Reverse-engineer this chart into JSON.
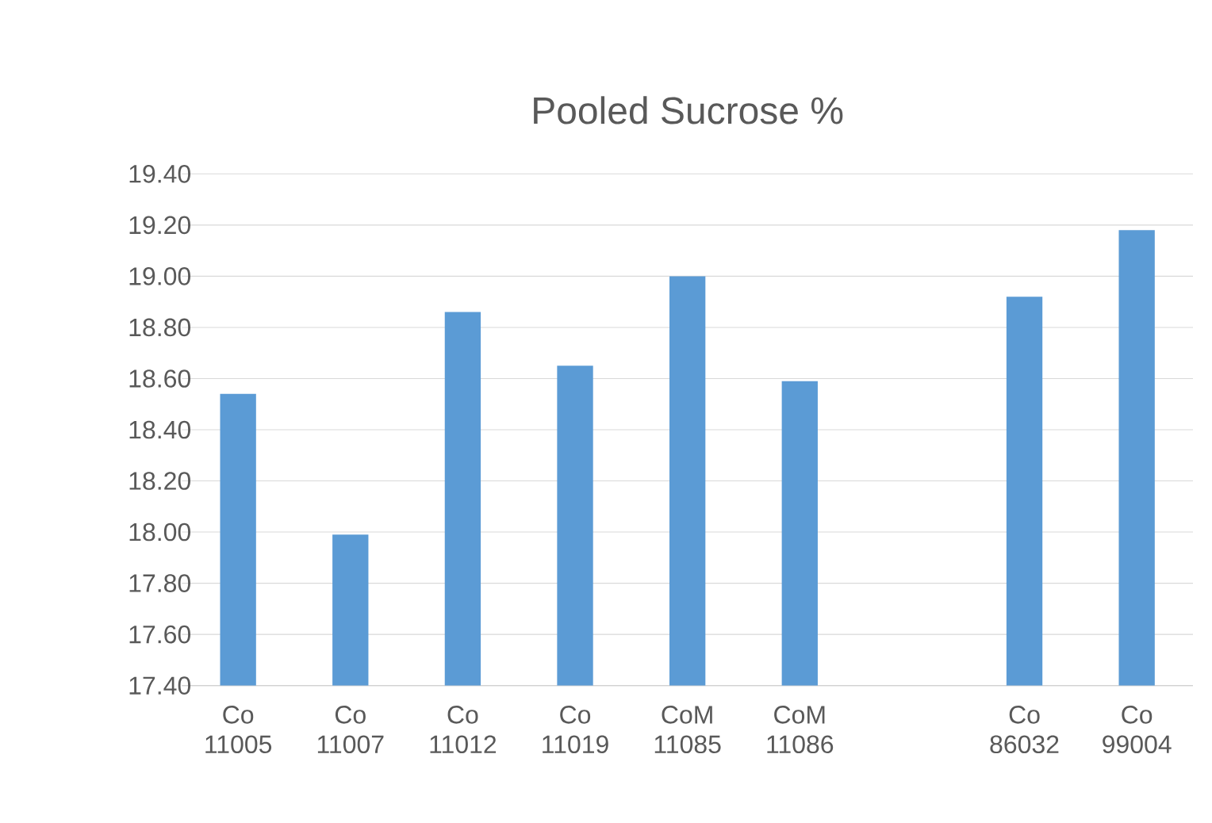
{
  "chart_data": {
    "type": "bar",
    "title": "Pooled Sucrose %",
    "categories": [
      "Co 11005",
      "Co 11007",
      "Co 11012",
      "Co 11019",
      "CoM 11085",
      "CoM 11086",
      null,
      "Co 86032",
      "Co 99004"
    ],
    "values": [
      18.54,
      17.99,
      18.86,
      18.65,
      19.0,
      18.59,
      null,
      18.92,
      19.18
    ],
    "color": "#5b9bd5",
    "ylim": [
      17.4,
      19.4
    ],
    "yticks": [
      {
        "value": 17.4,
        "label": "17.40"
      },
      {
        "value": 17.6,
        "label": "17.60"
      },
      {
        "value": 17.8,
        "label": "17.80"
      },
      {
        "value": 18.0,
        "label": "18.00"
      },
      {
        "value": 18.2,
        "label": "18.20"
      },
      {
        "value": 18.4,
        "label": "18.40"
      },
      {
        "value": 18.6,
        "label": "18.60"
      },
      {
        "value": 18.8,
        "label": "18.80"
      },
      {
        "value": 19.0,
        "label": "19.00"
      },
      {
        "value": 19.2,
        "label": "19.20"
      },
      {
        "value": 19.4,
        "label": "19.40"
      }
    ],
    "grid": "y"
  }
}
